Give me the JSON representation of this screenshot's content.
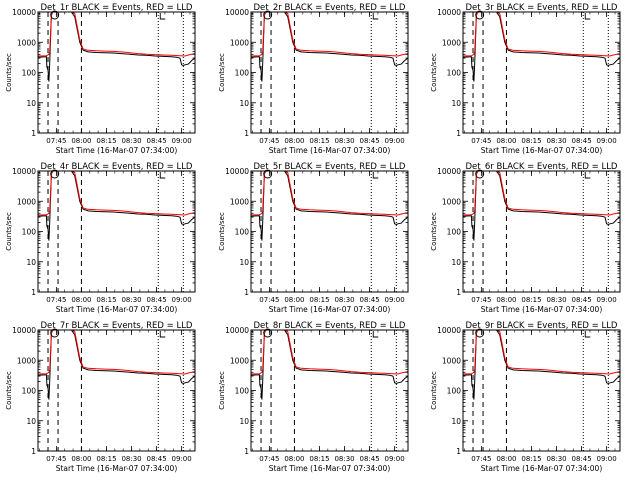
{
  "colors": {
    "events": "#000000",
    "lld": "#ff0000",
    "axis": "#000000",
    "background": "#ffffff"
  },
  "panels": [
    {
      "title": "Det_1r BLACK = Events, RED = LLD",
      "xtick_labels": [
        "07:45",
        "08:00",
        "08:15",
        "08:30",
        "08:45",
        "09:00"
      ],
      "xlabel": "Start Time (16-Mar-07 07:34:00)"
    },
    {
      "title": "Det_2r BLACK = Events, RED = LLD",
      "xtick_labels": [
        "07:45",
        "08:00",
        "08:15",
        "08:30",
        "08:45",
        "09:00"
      ],
      "xlabel": "Start Time (16-Mar-07 07:34:00)"
    },
    {
      "title": "Det_3r BLACK = Events, RED = LLD",
      "xtick_labels": [
        "07:45",
        "08:00",
        "08:15",
        "08:30",
        "08:45",
        "09:00"
      ],
      "xlabel": "Start Time (16-Mar-07 07:34:00)"
    },
    {
      "title": "Det_4r BLACK = Events, RED = LLD",
      "xtick_labels": [
        "07:45",
        "08:00",
        "08:15",
        "08:30",
        "08:45",
        "09:00"
      ],
      "xlabel": "Start Time (16-Mar-07 07:34:00)"
    },
    {
      "title": "Det_5r BLACK = Events, RED = LLD",
      "xtick_labels": [
        "07:45",
        "08:00",
        "08:15",
        "08:30",
        "08:45",
        "09:00"
      ],
      "xlabel": "Start Time (16-Mar-07 07:34:00)"
    },
    {
      "title": "Det_6r BLACK = Events, RED = LLD",
      "xtick_labels": [
        "07:45",
        "08:00",
        "08:15",
        "08:30",
        "08:45",
        "09:00"
      ],
      "xlabel": "Start Time (16-Mar-07 07:34:00)"
    },
    {
      "title": "Det_7r BLACK = Events, RED = LLD",
      "xtick_labels": [
        "07:45",
        "08:00",
        "08:15",
        "08:30",
        "08:45",
        "09:00"
      ],
      "xlabel": "Start Time (16-Mar-07 07:34:00)"
    },
    {
      "title": "Det_8r BLACK = Events, RED = LLD",
      "xtick_labels": [
        "07:45",
        "08:00",
        "08:15",
        "08:30",
        "08:45",
        "09:00"
      ],
      "xlabel": "Start Time (16-Mar-07 07:34:00)"
    },
    {
      "title": "Det_9r BLACK = Events, RED = LLD",
      "xtick_labels": [
        "07:45",
        "08:00",
        "08:15",
        "08:30",
        "08:45",
        "09:00"
      ],
      "xlabel": "Start Time (16-Mar-07 07:34:00)"
    }
  ],
  "chart_data": {
    "type": "line",
    "yscale": "log",
    "ylim": [
      1,
      10000
    ],
    "ytick_labels": [
      "1",
      "10",
      "100",
      "1000",
      "10000"
    ],
    "ylabel": "Counts/sec",
    "xlim_minutes_after_start": [
      0,
      94
    ],
    "xticks_minutes_after_start": [
      11,
      26,
      41,
      56,
      71,
      86
    ],
    "dashed_vlines_minutes": [
      6,
      12,
      26
    ],
    "dotted_vlines_minutes": [
      72,
      87
    ],
    "series": [
      {
        "name": "Events",
        "color": "#000000",
        "x": [
          0,
          5,
          5.3,
          6,
          6.5,
          7,
          8,
          9,
          10,
          11,
          12,
          14,
          16,
          18,
          20,
          22,
          25,
          27,
          30,
          35,
          40,
          45,
          50,
          55,
          60,
          65,
          70,
          75,
          80,
          83,
          85,
          86,
          87,
          88,
          90,
          92,
          94
        ],
        "values": [
          320,
          330,
          150,
          120,
          50,
          200,
          8000,
          10000,
          10000,
          10000,
          10000,
          10000,
          10000,
          10000,
          10000,
          7000,
          1000,
          550,
          480,
          460,
          450,
          440,
          420,
          400,
          380,
          370,
          350,
          340,
          330,
          320,
          300,
          180,
          170,
          180,
          190,
          250,
          300
        ]
      },
      {
        "name": "LLD",
        "color": "#ff0000",
        "x": [
          0,
          5,
          6,
          6.5,
          7,
          8,
          9,
          10,
          12,
          14,
          16,
          18,
          20,
          22,
          25,
          27,
          30,
          35,
          40,
          45,
          50,
          55,
          60,
          65,
          70,
          75,
          80,
          85,
          88,
          90,
          92,
          94
        ],
        "values": [
          350,
          360,
          380,
          400,
          500,
          8000,
          10000,
          10000,
          10000,
          10000,
          10000,
          10000,
          10000,
          9000,
          1200,
          600,
          540,
          520,
          510,
          500,
          480,
          450,
          420,
          400,
          390,
          380,
          370,
          360,
          350,
          380,
          400,
          420
        ]
      }
    ]
  }
}
